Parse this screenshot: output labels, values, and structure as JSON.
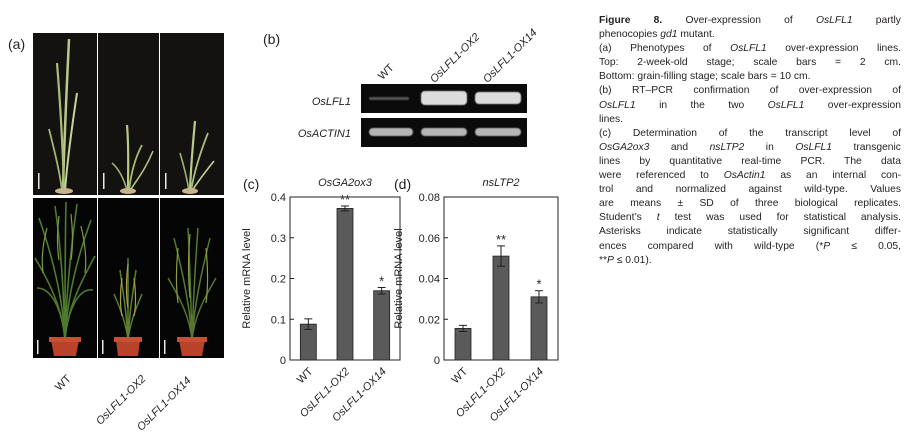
{
  "panel_labels": {
    "a": "(a)",
    "b": "(b)",
    "c": "(c)",
    "d": "(d)"
  },
  "panel_a": {
    "x_labels": [
      "WT",
      "OsLFL1-OX2",
      "OsLFL1-OX14"
    ]
  },
  "panel_b": {
    "lane_labels": [
      "WT",
      "OsLFL1-OX2",
      "OsLFL1-OX14"
    ],
    "genes": [
      "OsLFL1",
      "OsACTIN1"
    ]
  },
  "caption": {
    "title_prefix": "Figure 8.",
    "title_rest": "Over-expression of",
    "title_gene": "OsLFL1",
    "title_tail": "partly",
    "title_line2_a": "phenocopies",
    "title_line2_gene": "gd1",
    "title_line2_b": "mutant.",
    "a_1": "(a) Phenotypes of",
    "a_gene": "OsLFL1",
    "a_2": "over-expression lines.",
    "a_3": "Top: 2-week-old stage; scale bars = 2 cm.",
    "a_4": "Bottom: grain-filling stage; scale bars = 10 cm.",
    "b_1": "(b) RT–PCR confirmation of over-expression of",
    "b_gene1": "OsLFL1",
    "b_2": "in the two",
    "b_gene2": "OsLFL1",
    "b_3": "over-expression",
    "b_4": "lines.",
    "c_1": "(c) Determination of the transcript level of",
    "c_gene1": "OsGA2ox3",
    "c_2": "and",
    "c_gene2": "nsLTP2",
    "c_3": "in",
    "c_gene3": "OsLFL1",
    "c_4": "transgenic",
    "c_5": "lines by quantitative real-time PCR. The data",
    "c_6": "were referenced to",
    "c_gene4": "OsActin1",
    "c_7": "as an internal con-",
    "c_8": "trol and normalized against wild-type. Values",
    "c_9": "are means ± SD of three biological replicates.",
    "c_10a": "Student’s",
    "c_10t": "t",
    "c_10b": "test was used for statistical analysis.",
    "c_11": "Asterisks indicate statistically significant differ-",
    "c_12a": "ences compared with wild-type (*",
    "c_12p": "P",
    "c_12b": "≤ 0.05,",
    "c_13a": "**",
    "c_13p": "P",
    "c_13b": "≤ 0.01)."
  },
  "chart_data": [
    {
      "type": "bar",
      "title": "OsGA2ox3",
      "ylabel": "Relative mRNA level",
      "categories": [
        "WT",
        "OsLFL1-OX2",
        "OsLFL1-OX14"
      ],
      "values": [
        0.088,
        0.372,
        0.17
      ],
      "errors": [
        0.013,
        0.006,
        0.008
      ],
      "annotations": [
        "",
        "**",
        "*"
      ],
      "ylim": [
        0,
        0.4
      ],
      "yticks": [
        "0",
        "0.1",
        "0.2",
        "0.3",
        "0.4"
      ],
      "bar_color": "#5a5a5a",
      "grid": false
    },
    {
      "type": "bar",
      "title": "nsLTP2",
      "ylabel": "Relative mRNA level",
      "categories": [
        "WT",
        "OsLFL1-OX2",
        "OsLFL1-OX14"
      ],
      "values": [
        0.0155,
        0.051,
        0.031
      ],
      "errors": [
        0.0015,
        0.005,
        0.003
      ],
      "annotations": [
        "",
        "**",
        "*"
      ],
      "ylim": [
        0,
        0.08
      ],
      "yticks": [
        "0",
        "0.02",
        "0.04",
        "0.06",
        "0.08"
      ],
      "bar_color": "#5a5a5a",
      "grid": false
    }
  ]
}
